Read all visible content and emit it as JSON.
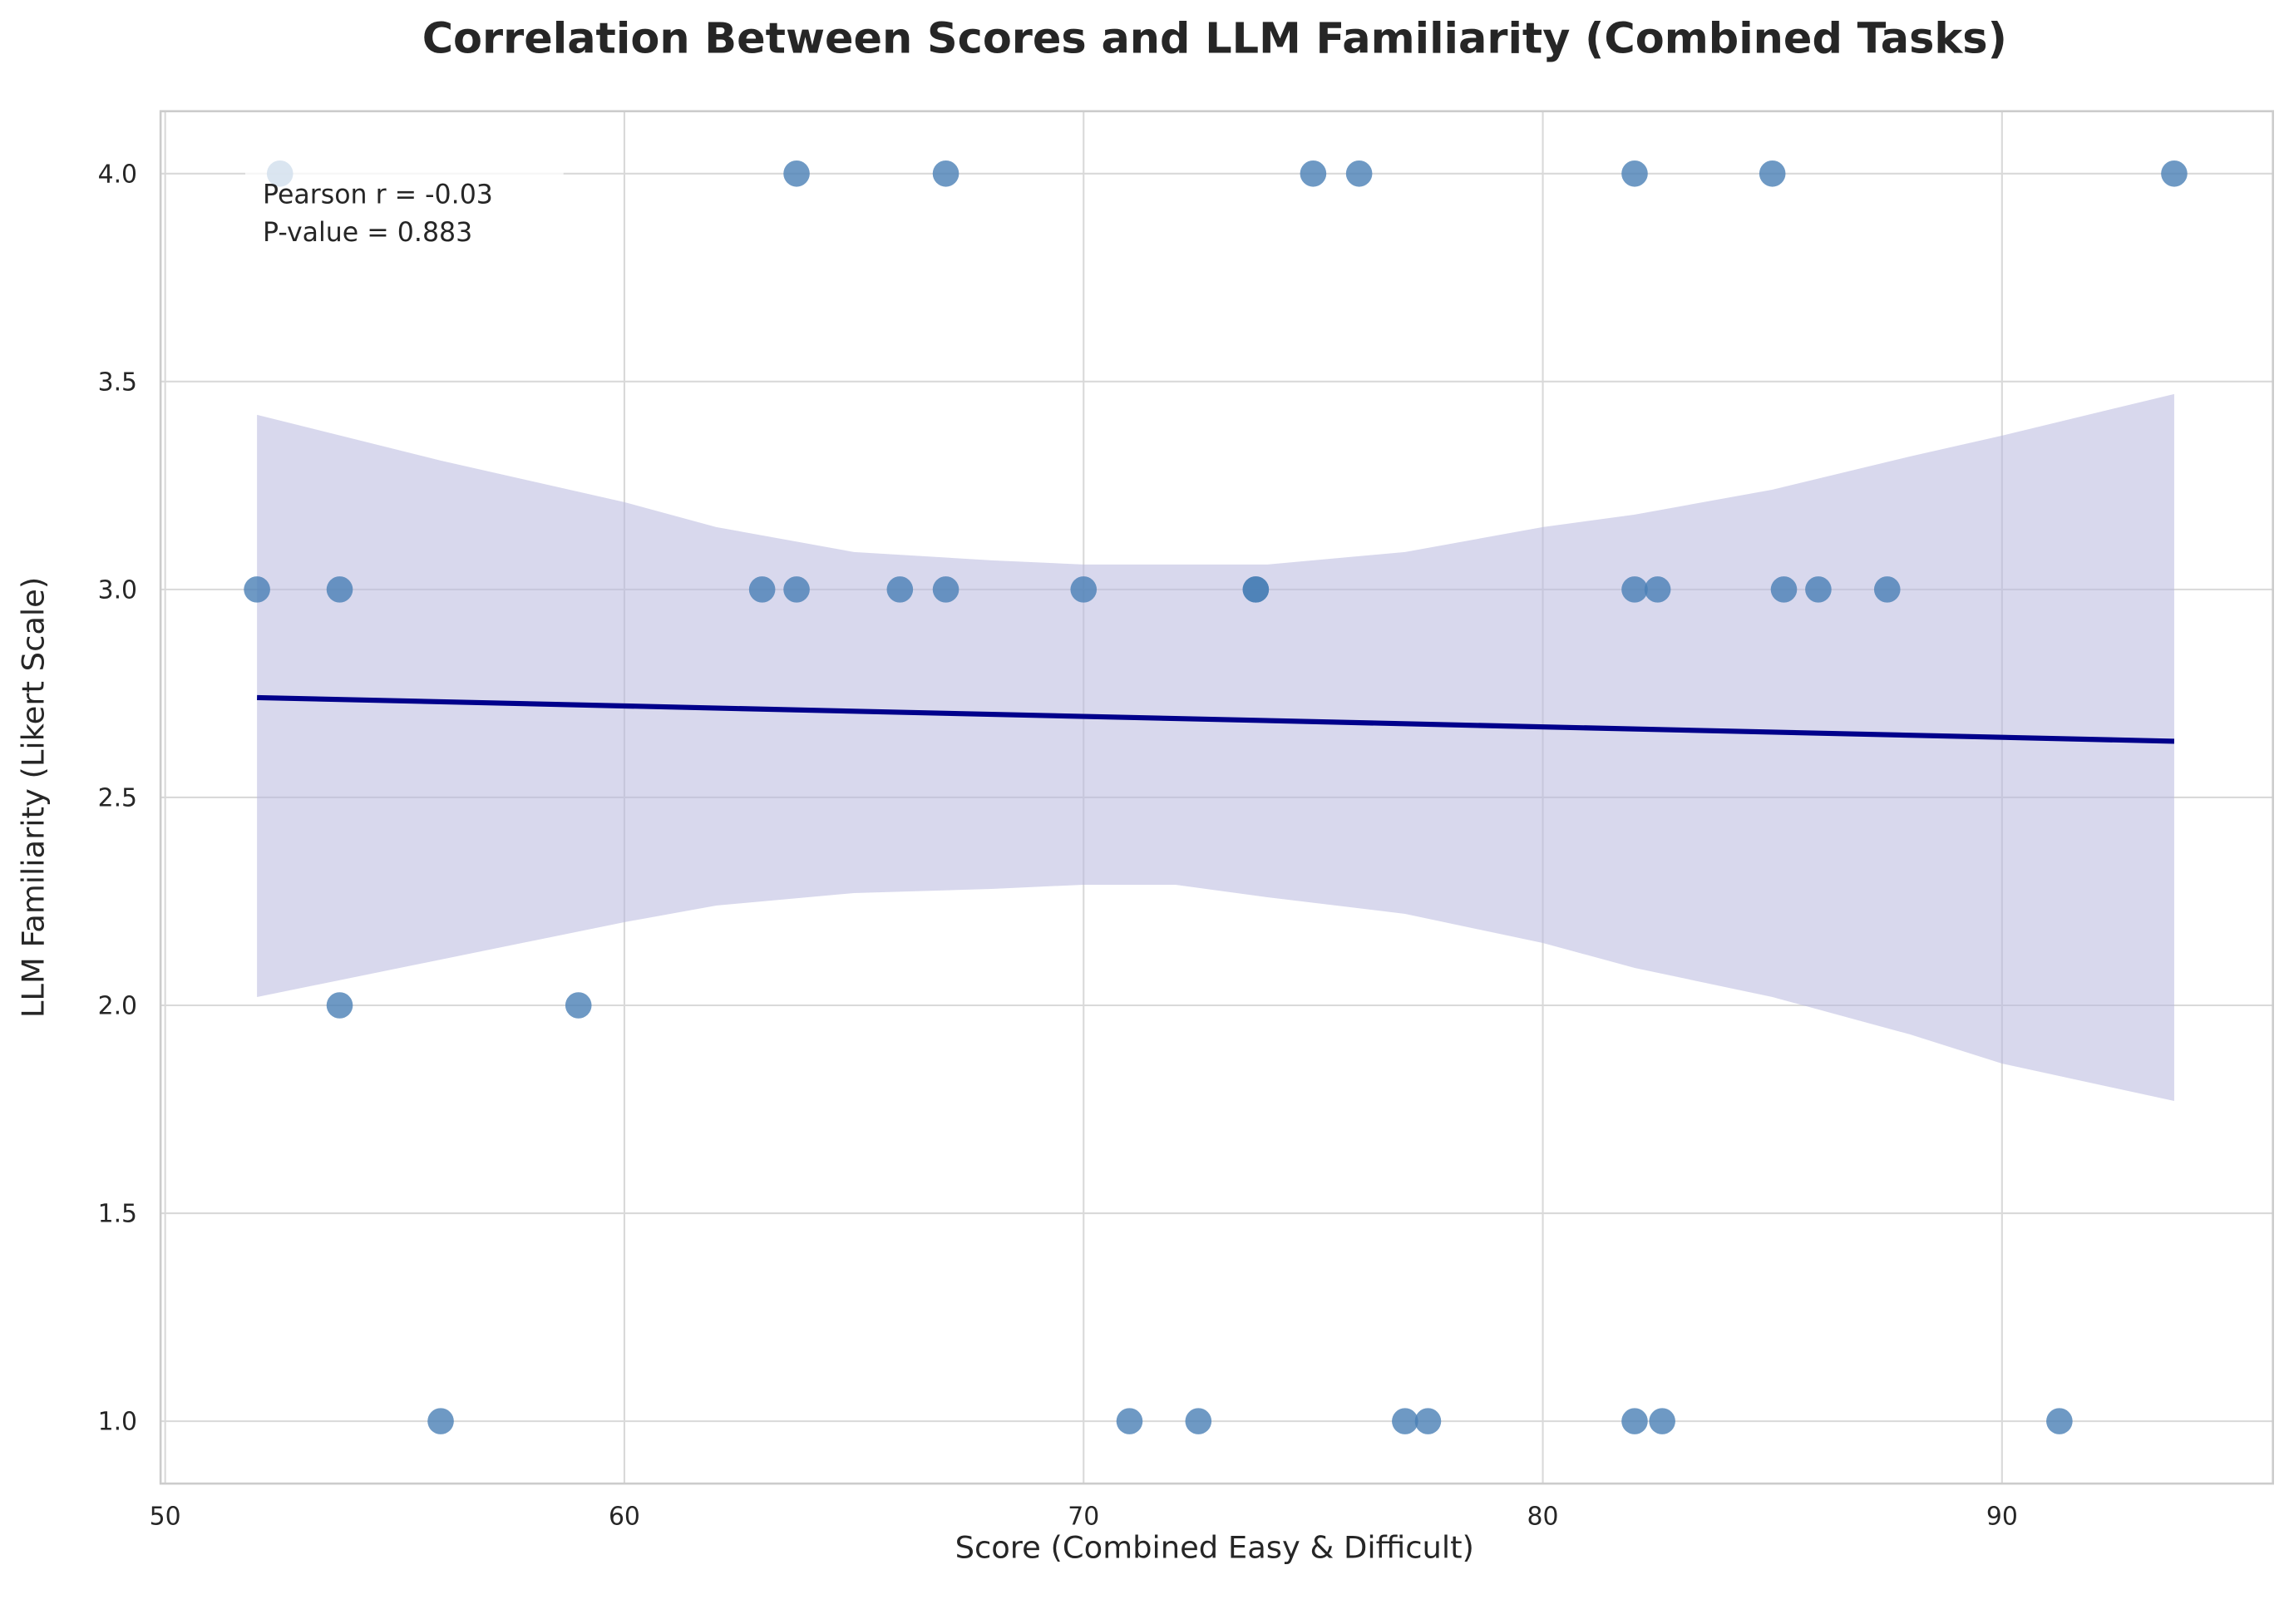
{
  "chart_data": {
    "type": "scatter",
    "title": "Correlation Between Scores and LLM Familiarity (Combined Tasks)",
    "xlabel": "Score (Combined Easy & Difficult)",
    "ylabel": "LLM Familiarity (Likert Scale)",
    "xlim": [
      49.9,
      95.9
    ],
    "ylim": [
      0.85,
      4.15
    ],
    "xticks": [
      50,
      60,
      70,
      80,
      90
    ],
    "xtick_labels": [
      "50",
      "60",
      "70",
      "80",
      "90"
    ],
    "yticks": [
      1.0,
      1.5,
      2.0,
      2.5,
      3.0,
      3.5,
      4.0
    ],
    "ytick_labels": [
      "1.0",
      "1.5",
      "2.0",
      "2.5",
      "3.0",
      "3.5",
      "4.0"
    ],
    "grid": true,
    "annotation": {
      "line1": "Pearson r = -0.03",
      "line2": "P-value = 0.883"
    },
    "colors": {
      "points": "#4a7fb5",
      "regression_line": "#00008b",
      "confidence_band": "#b8b8de",
      "grid": "#d9d9d9"
    },
    "points": [
      [
        52.5,
        4
      ],
      [
        63.75,
        4
      ],
      [
        67.0,
        4
      ],
      [
        75.0,
        4
      ],
      [
        76.0,
        4
      ],
      [
        82.0,
        4
      ],
      [
        85.0,
        4
      ],
      [
        93.75,
        4
      ],
      [
        52.0,
        3
      ],
      [
        53.8,
        3
      ],
      [
        63.0,
        3
      ],
      [
        63.75,
        3
      ],
      [
        66.0,
        3
      ],
      [
        67.0,
        3
      ],
      [
        70.0,
        3
      ],
      [
        73.75,
        3
      ],
      [
        73.75,
        3
      ],
      [
        82.0,
        3
      ],
      [
        82.5,
        3
      ],
      [
        85.25,
        3
      ],
      [
        86.0,
        3
      ],
      [
        87.5,
        3
      ],
      [
        53.8,
        2
      ],
      [
        59.0,
        2
      ],
      [
        56.0,
        1
      ],
      [
        71.0,
        1
      ],
      [
        72.5,
        1
      ],
      [
        77.0,
        1
      ],
      [
        77.5,
        1
      ],
      [
        82.0,
        1
      ],
      [
        82.6,
        1
      ],
      [
        91.25,
        1
      ]
    ],
    "regression_line": {
      "x": [
        52.0,
        93.75
      ],
      "y": [
        2.74,
        2.635
      ]
    },
    "confidence_band": {
      "x": [
        52.0,
        56.0,
        60.0,
        62.0,
        65.0,
        68.0,
        70.0,
        72.0,
        74.0,
        77.0,
        80.0,
        82.0,
        85.0,
        88.0,
        90.0,
        93.75
      ],
      "upper": [
        3.42,
        3.31,
        3.21,
        3.15,
        3.09,
        3.07,
        3.06,
        3.06,
        3.06,
        3.09,
        3.15,
        3.18,
        3.24,
        3.32,
        3.37,
        3.47
      ],
      "lower": [
        2.02,
        2.11,
        2.2,
        2.24,
        2.27,
        2.28,
        2.29,
        2.29,
        2.26,
        2.22,
        2.15,
        2.09,
        2.02,
        1.93,
        1.86,
        1.77
      ]
    }
  }
}
